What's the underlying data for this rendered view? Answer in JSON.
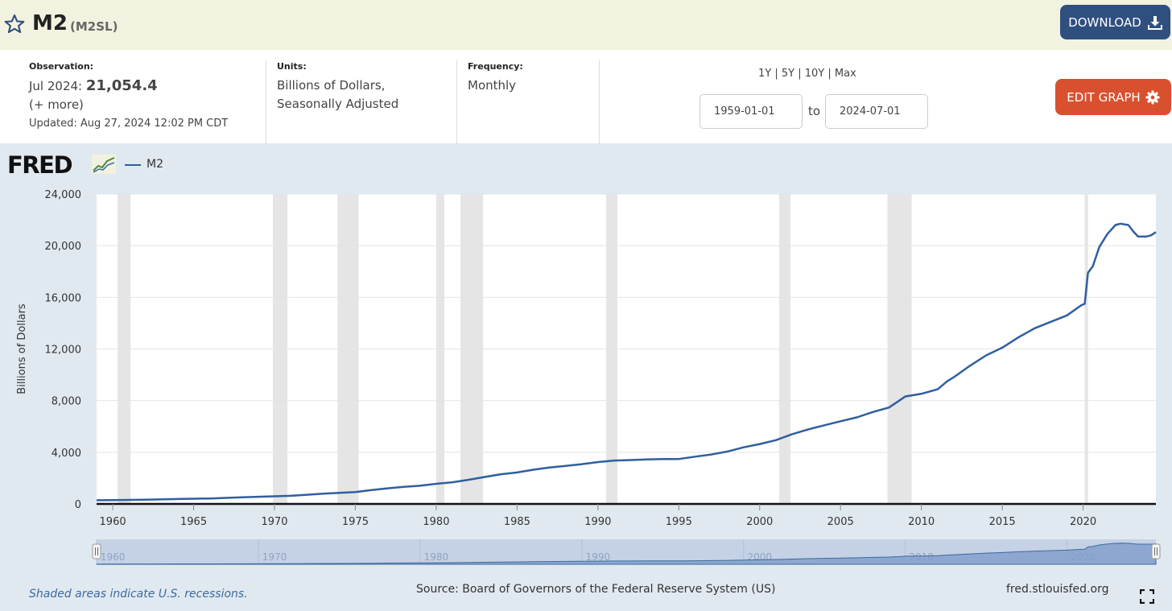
{
  "header": {
    "title": "M2",
    "series_id": "(M2SL)",
    "download_label": "DOWNLOAD"
  },
  "info": {
    "observation_label": "Observation:",
    "observation_date": "Jul 2024:",
    "observation_value": "21,054.4",
    "more_link": "(+ more)",
    "updated_label": "Updated:",
    "updated_value": "Aug 27, 2024 12:02 PM CDT",
    "units_label": "Units:",
    "units_line1": "Billions of Dollars,",
    "units_line2": "Seasonally Adjusted",
    "frequency_label": "Frequency:",
    "frequency_value": "Monthly"
  },
  "range": {
    "links": [
      "1Y",
      "5Y",
      "10Y",
      "Max"
    ],
    "start_date": "1959-01-01",
    "to_label": "to",
    "end_date": "2024-07-01",
    "edit_label": "EDIT GRAPH"
  },
  "chart_legend": {
    "logo": "FRED",
    "series_name": "M2"
  },
  "footer": {
    "recession_note": "Shaded areas indicate U.S. recessions.",
    "source": "Source: Board of Governors of the Federal Reserve System (US)",
    "site": "fred.stlouisfed.org"
  },
  "colors": {
    "line": "#2f5f9f",
    "download_bg": "#2f4f7f",
    "edit_bg": "#d9502f",
    "recession": "#e5e5e5"
  },
  "icons": [
    "star-icon",
    "download-icon",
    "gear-icon",
    "fred-chart-icon",
    "fullscreen-icon"
  ],
  "chart_data": {
    "type": "line",
    "title": "",
    "xlabel": "",
    "ylabel": "Billions of Dollars",
    "xlim": [
      1959.0,
      2024.5
    ],
    "ylim": [
      0,
      24000
    ],
    "y_ticks": [
      0,
      4000,
      8000,
      12000,
      16000,
      20000,
      24000
    ],
    "y_tick_labels": [
      "0",
      "4,000",
      "8,000",
      "12,000",
      "16,000",
      "20,000",
      "24,000"
    ],
    "x_ticks": [
      1960,
      1965,
      1970,
      1975,
      1980,
      1985,
      1990,
      1995,
      2000,
      2005,
      2010,
      2015,
      2020
    ],
    "navigator_ticks": [
      1960,
      1970,
      1980,
      1990,
      2000,
      2010,
      2020
    ],
    "recessions": [
      [
        1960.3,
        1961.1
      ],
      [
        1969.9,
        1970.8
      ],
      [
        1973.9,
        1975.2
      ],
      [
        1980.0,
        1980.5
      ],
      [
        1981.5,
        1982.9
      ],
      [
        1990.5,
        1991.2
      ],
      [
        2001.2,
        2001.9
      ],
      [
        2007.9,
        2009.4
      ],
      [
        2020.1,
        2020.3
      ]
    ],
    "grid": true,
    "series": [
      {
        "name": "M2",
        "x": [
          1959.0,
          1960,
          1962,
          1964,
          1966,
          1968,
          1970,
          1971,
          1972,
          1973,
          1974,
          1975,
          1976,
          1977,
          1978,
          1979,
          1980,
          1981,
          1982,
          1983,
          1984,
          1985,
          1986,
          1987,
          1988,
          1989,
          1990,
          1991,
          1992,
          1993,
          1994,
          1995,
          1996,
          1997,
          1998,
          1999,
          2000,
          2001,
          2002,
          2003,
          2004,
          2005,
          2006,
          2007,
          2008,
          2008.8,
          2009,
          2010,
          2011,
          2011.6,
          2012,
          2013,
          2014,
          2015,
          2016,
          2017,
          2018,
          2019,
          2019.9,
          2020.1,
          2020.3,
          2020.6,
          2021,
          2021.5,
          2022.0,
          2022.3,
          2022.8,
          2023.1,
          2023.4,
          2023.9,
          2024.2,
          2024.5
        ],
        "values": [
          287,
          300,
          330,
          380,
          425,
          510,
          590,
          630,
          710,
          800,
          860,
          920,
          1080,
          1210,
          1320,
          1410,
          1560,
          1680,
          1870,
          2090,
          2300,
          2440,
          2650,
          2820,
          2950,
          3080,
          3240,
          3360,
          3400,
          3440,
          3470,
          3480,
          3660,
          3830,
          4060,
          4380,
          4640,
          4940,
          5400,
          5770,
          6090,
          6400,
          6700,
          7120,
          7470,
          8150,
          8320,
          8530,
          8880,
          9500,
          9810,
          10700,
          11500,
          12100,
          12900,
          13600,
          14100,
          14600,
          15400,
          15500,
          17900,
          18400,
          19900,
          20900,
          21600,
          21700,
          21600,
          21100,
          20700,
          20700,
          20800,
          21054.4
        ]
      }
    ]
  }
}
